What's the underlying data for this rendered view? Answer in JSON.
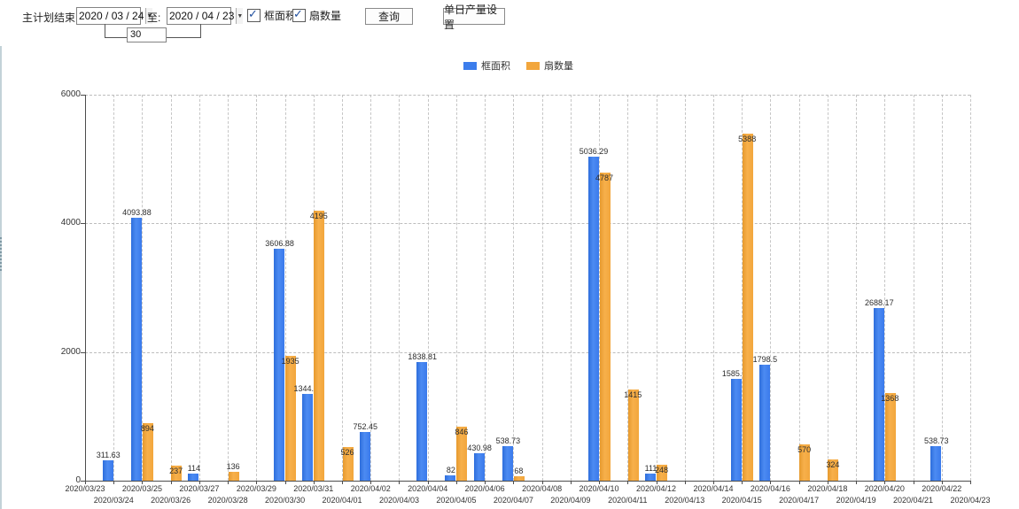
{
  "toolbar": {
    "plan_end_label": "主计划结束时间:",
    "date_from": "2020 / 03 / 24",
    "to_label": "至:",
    "date_to": "2020 / 04 / 23",
    "interval_value": "30",
    "checkbox_frame": {
      "label": "框面积",
      "checked": true
    },
    "checkbox_fan": {
      "label": "扇数量",
      "checked": true
    },
    "query_button": "查询",
    "daily_output_button": "单日产量设置",
    "dropdown_icon": "▼",
    "check_glyph": "✓"
  },
  "legend": {
    "items": [
      {
        "label": "框面积",
        "color": "#3C7DEC"
      },
      {
        "label": "扇数量",
        "color": "#F2A63C"
      }
    ]
  },
  "chart_data": {
    "type": "bar",
    "title": "",
    "xlabel": "",
    "ylabel": "",
    "ylim": [
      0,
      6000
    ],
    "yticks": [
      0,
      2000,
      4000,
      6000
    ],
    "grid": true,
    "legend_position": "top-center",
    "categories": [
      "2020/03/23",
      "2020/03/24",
      "2020/03/25",
      "2020/03/26",
      "2020/03/27",
      "2020/03/28",
      "2020/03/29",
      "2020/03/30",
      "2020/03/31",
      "2020/04/01",
      "2020/04/02",
      "2020/04/03",
      "2020/04/04",
      "2020/04/05",
      "2020/04/06",
      "2020/04/07",
      "2020/04/08",
      "2020/04/09",
      "2020/04/10",
      "2020/04/11",
      "2020/04/12",
      "2020/04/13",
      "2020/04/14",
      "2020/04/15",
      "2020/04/16",
      "2020/04/17",
      "2020/04/18",
      "2020/04/19",
      "2020/04/20",
      "2020/04/21",
      "2020/04/22",
      "2020/04/23"
    ],
    "series": [
      {
        "name": "框面积",
        "color": "#3C7DEC",
        "values": [
          null,
          311.63,
          4093.88,
          null,
          114,
          null,
          null,
          3606.88,
          1344.95,
          null,
          752.45,
          null,
          1838.81,
          82,
          430.98,
          538.73,
          null,
          null,
          5036.29,
          null,
          111,
          null,
          null,
          1585.96,
          1798.5,
          null,
          null,
          null,
          2688.17,
          null,
          538.73,
          null
        ]
      },
      {
        "name": "扇数量",
        "color": "#F2A63C",
        "values": [
          null,
          null,
          894,
          237,
          null,
          136,
          null,
          1935,
          4195,
          526,
          null,
          null,
          null,
          846,
          null,
          68,
          null,
          null,
          4787,
          1415,
          248,
          null,
          null,
          5388,
          null,
          570,
          324,
          null,
          1368,
          null,
          null,
          null
        ]
      }
    ]
  }
}
